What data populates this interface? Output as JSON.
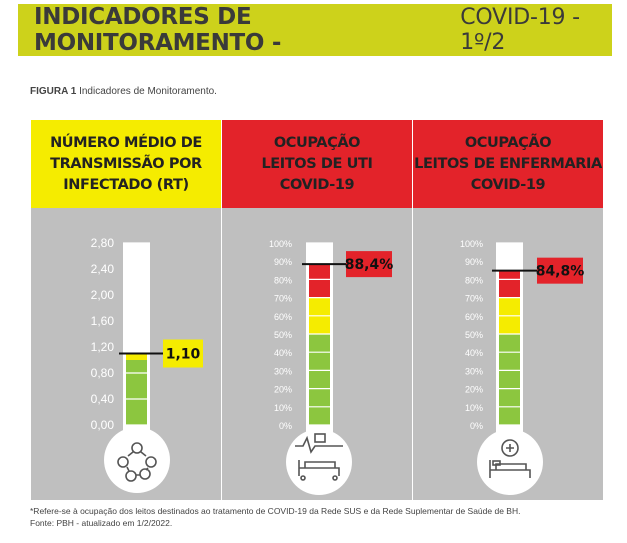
{
  "header": {
    "title_bold": "INDICADORES DE MONITORAMENTO -",
    "title_light": "COVID-19 - 1º/2"
  },
  "caption": {
    "label": "FIGURA 1",
    "text": "Indicadores de Monitoramento."
  },
  "chart_data": [
    {
      "type": "bar",
      "title": "NÚMERO MÉDIO DE\nTRANSMISSÃO POR\nINFECTADO (RT)",
      "ticks": [
        "2,80",
        "2,40",
        "2,00",
        "1,60",
        "1,20",
        "0,80",
        "0,40",
        "0,00"
      ],
      "ylim": [
        0,
        2.8
      ],
      "value": 1.1,
      "value_label": "1,10",
      "icon": "network-people-icon",
      "zone_colors": {
        "low": "#8cc63f",
        "mid": "#f5ec00"
      },
      "zones": [
        {
          "from": 0,
          "to": 1.0,
          "color": "#8cc63f"
        },
        {
          "from": 1.0,
          "to": 1.1,
          "color": "#f5ec00"
        }
      ]
    },
    {
      "type": "bar",
      "title": "OCUPAÇÃO\nLEITOS DE UTI\nCOVID-19",
      "ticks": [
        "100%",
        "90%",
        "80%",
        "70%",
        "60%",
        "50%",
        "40%",
        "30%",
        "20%",
        "10%",
        "0%"
      ],
      "ylim": [
        0,
        100
      ],
      "value": 88.4,
      "value_label": "88,4%",
      "icon": "icu-bed-icon",
      "zones": [
        {
          "from": 0,
          "to": 50,
          "color": "#8cc63f"
        },
        {
          "from": 50,
          "to": 70,
          "color": "#f5ec00"
        },
        {
          "from": 70,
          "to": 88.4,
          "color": "#e3232a"
        }
      ]
    },
    {
      "type": "bar",
      "title": "OCUPAÇÃO\nLEITOS DE ENFERMARIA\nCOVID-19",
      "ticks": [
        "100%",
        "90%",
        "80%",
        "70%",
        "60%",
        "50%",
        "40%",
        "30%",
        "20%",
        "10%",
        "0%"
      ],
      "ylim": [
        0,
        100
      ],
      "value": 84.8,
      "value_label": "84,8%",
      "icon": "hospital-bed-icon",
      "zones": [
        {
          "from": 0,
          "to": 50,
          "color": "#8cc63f"
        },
        {
          "from": 50,
          "to": 70,
          "color": "#f5ec00"
        },
        {
          "from": 70,
          "to": 84.8,
          "color": "#e3232a"
        }
      ]
    }
  ],
  "footnote": {
    "line1": "*Refere-se à ocupação dos leitos destinados ao tratamento de COVID-19 da Rede SUS e da Rede Suplementar de Saúde de BH.",
    "line2": "Fonte: PBH - atualizado em 1/2/2022."
  }
}
